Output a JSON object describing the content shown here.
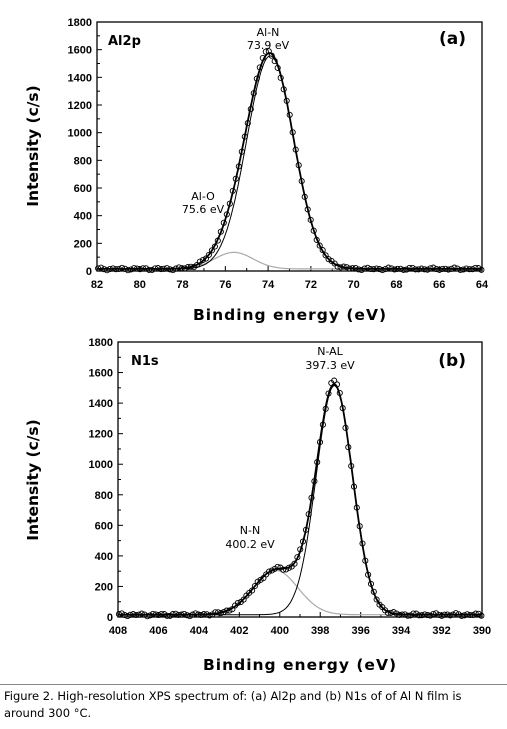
{
  "caption": "Figure 2. High-resolution XPS spectrum of: (a) Al2p and (b) N1s of of Al N film is around 300 °C.",
  "colors": {
    "data": "#000000",
    "fit": "#000000",
    "sub": "#aaaaaa"
  },
  "chart_data": [
    {
      "type": "scatter",
      "panel_label": "(a)",
      "element": "Al2p",
      "xlabel": "Binding energy (eV)",
      "ylabel": "Intensity (c/s)",
      "xlim": [
        82,
        64
      ],
      "ylim": [
        0,
        1800
      ],
      "xticks": [
        82,
        80,
        78,
        76,
        74,
        72,
        70,
        68,
        66,
        64
      ],
      "yticks": [
        0,
        200,
        400,
        600,
        800,
        1000,
        1200,
        1400,
        1600,
        1800
      ],
      "peaks": [
        {
          "label": "Al-N",
          "energy_label": "73.9 eV",
          "center": 73.9,
          "height": 1540,
          "width": 1.1
        },
        {
          "label": "Al-O",
          "energy_label": "75.6 eV",
          "center": 75.6,
          "height": 120,
          "width": 0.9
        }
      ],
      "series": [
        {
          "role": "measured",
          "style": "open-circle"
        },
        {
          "role": "fit",
          "style": "line"
        },
        {
          "role": "component",
          "style": "line"
        }
      ],
      "baseline": 15,
      "xstep": 0.14
    },
    {
      "type": "scatter",
      "panel_label": "(b)",
      "element": "N1s",
      "xlabel": "Binding energy (eV)",
      "ylabel": "Intensity (c/s)",
      "xlim": [
        408,
        390
      ],
      "ylim": [
        0,
        1800
      ],
      "xticks": [
        408,
        406,
        404,
        402,
        400,
        398,
        396,
        394,
        392,
        390
      ],
      "yticks": [
        0,
        200,
        400,
        600,
        800,
        1000,
        1200,
        1400,
        1600,
        1800
      ],
      "peaks": [
        {
          "label": "N-AL",
          "energy_label": "397.3 eV",
          "center": 397.3,
          "height": 1500,
          "width": 0.9
        },
        {
          "label": "N-N",
          "energy_label": "400.2 eV",
          "center": 400.2,
          "height": 290,
          "width": 1.1
        }
      ],
      "series": [
        {
          "role": "measured",
          "style": "open-circle"
        },
        {
          "role": "fit",
          "style": "line"
        },
        {
          "role": "component",
          "style": "line"
        }
      ],
      "baseline": 15,
      "xstep": 0.14
    }
  ]
}
